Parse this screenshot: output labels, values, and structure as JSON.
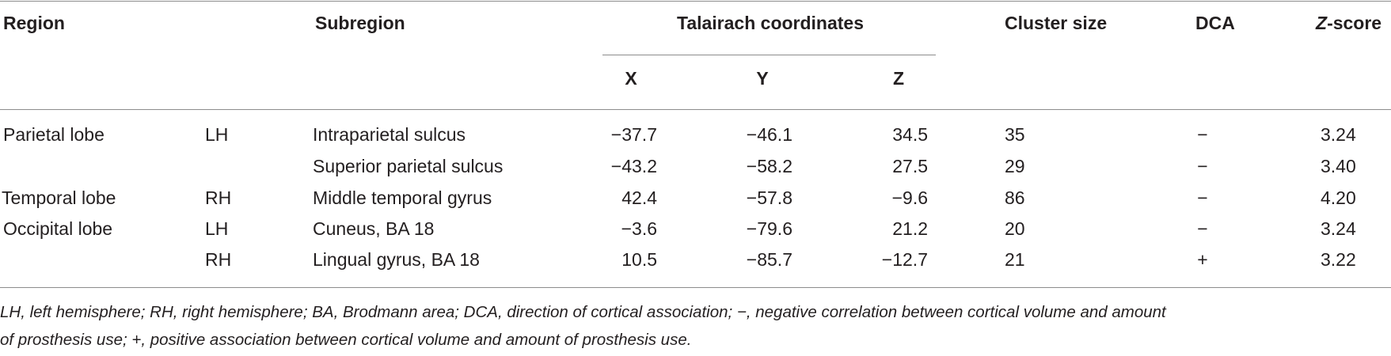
{
  "table": {
    "headers": {
      "region": "Region",
      "subregion": "Subregion",
      "talairach": "Talairach coordinates",
      "x": "X",
      "y": "Y",
      "z": "Z",
      "cluster_size": "Cluster size",
      "dca": "DCA",
      "zscore_letter": "Z",
      "zscore_rest": "-score"
    },
    "rows": [
      {
        "region": "Parietal lobe",
        "hemisphere": "LH",
        "subregion": "Intraparietal sulcus",
        "x": "−37.7",
        "y": "−46.1",
        "z": "34.5",
        "cluster_size": "35",
        "dca": "−",
        "zscore": "3.24"
      },
      {
        "region": "",
        "hemisphere": "",
        "subregion": "Superior parietal sulcus",
        "x": "−43.2",
        "y": "−58.2",
        "z": "27.5",
        "cluster_size": "29",
        "dca": "−",
        "zscore": "3.40"
      },
      {
        "region": "Temporal lobe",
        "hemisphere": "RH",
        "subregion": "Middle temporal gyrus",
        "x": "42.4",
        "y": "−57.8",
        "z": "−9.6",
        "cluster_size": "86",
        "dca": "−",
        "zscore": "4.20"
      },
      {
        "region": "Occipital lobe",
        "hemisphere": "LH",
        "subregion": "Cuneus, BA 18",
        "x": "−3.6",
        "y": "−79.6",
        "z": "21.2",
        "cluster_size": "20",
        "dca": "−",
        "zscore": "3.24"
      },
      {
        "region": "",
        "hemisphere": "RH",
        "subregion": "Lingual gyrus, BA 18",
        "x": "10.5",
        "y": "−85.7",
        "z": "−12.7",
        "cluster_size": "21",
        "dca": "+",
        "zscore": "3.22"
      }
    ]
  },
  "footnote": {
    "line1": "LH, left hemisphere; RH, right hemisphere; BA, Brodmann area; DCA, direction of cortical association; −, negative correlation between cortical volume and amount",
    "line2": "of prosthesis use; +, positive association between cortical volume and amount of prosthesis use."
  }
}
